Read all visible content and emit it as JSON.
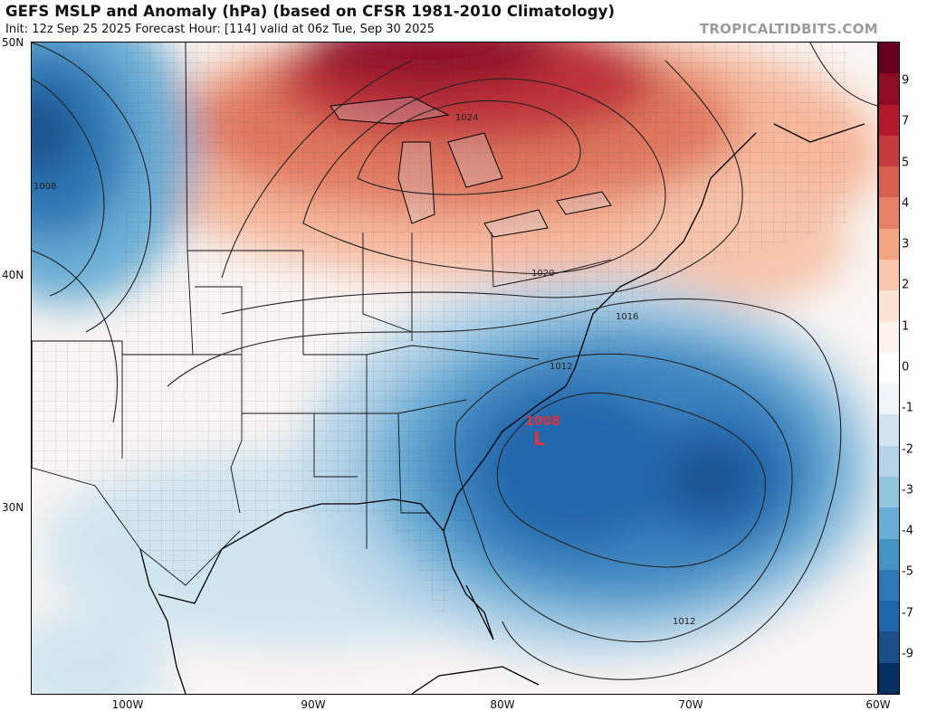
{
  "header": {
    "title": "GEFS MSLP and Anomaly (hPa) (based on CFSR 1981-2010 Climatology)",
    "subtitle": "Init: 12z Sep 25 2025   Forecast Hour: [114]   valid at 06z Tue, Sep 30 2025",
    "brand": "TROPICALTIDBITS.COM"
  },
  "axes": {
    "lat_labels": [
      "50N",
      "40N",
      "30N"
    ],
    "lon_labels": [
      "100W",
      "90W",
      "80W",
      "70W",
      "60W"
    ]
  },
  "colorbar": {
    "labels": [
      "9",
      "7",
      "5",
      "4",
      "3",
      "2",
      "1",
      "0",
      "-1",
      "-2",
      "-3",
      "-4",
      "-5",
      "-7",
      "-9"
    ],
    "colors": [
      "#67001f",
      "#8e0c25",
      "#b2182b",
      "#c43c3c",
      "#d6604d",
      "#e58267",
      "#f4a582",
      "#f9c7ad",
      "#fbe3d4",
      "#fdf3ec",
      "#ffffff",
      "#f0f5f9",
      "#d1e5f0",
      "#b5d4e9",
      "#92c5de",
      "#6aaed6",
      "#4393c3",
      "#2f78b5",
      "#2166ac",
      "#1a4f8a",
      "#053061"
    ]
  },
  "map": {
    "contour_labels": [
      "1024",
      "1020",
      "1016",
      "1012",
      "1012",
      "1008"
    ],
    "low": {
      "symbol": "L",
      "pressure": "1008"
    }
  }
}
